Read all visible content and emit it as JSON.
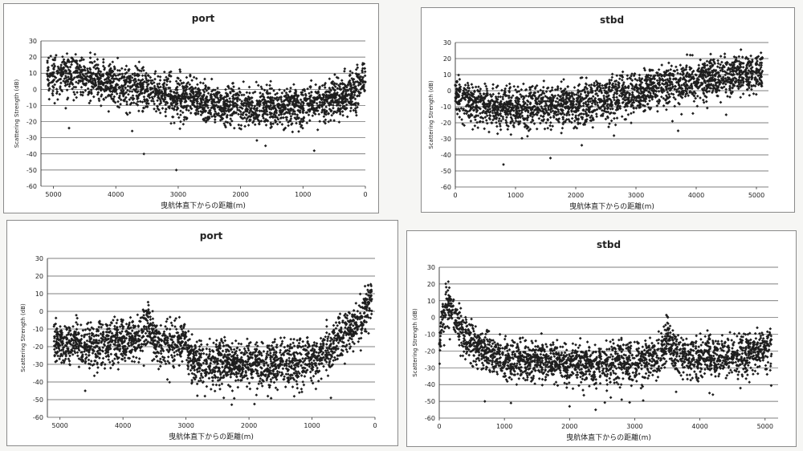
{
  "chart_data": [
    {
      "type": "scatter",
      "title": "port",
      "xlabel": "曳航体直下からの距離(m)",
      "ylabel": "Scattering Strength (dB)",
      "xlim": [
        5200,
        0
      ],
      "x_reversed": true,
      "ylim": [
        -60,
        30
      ],
      "xticks": [
        5000,
        4000,
        3000,
        2000,
        1000,
        0
      ],
      "yticks": [
        30,
        20,
        10,
        0,
        -10,
        -20,
        -30,
        -40,
        -50,
        -60
      ],
      "grid": "horizontal",
      "legend": "none",
      "marker_color": "#1e1e1e",
      "trend": {
        "x": [
          5100,
          4500,
          4000,
          3500,
          3000,
          2500,
          2000,
          1500,
          1000,
          800,
          600,
          300,
          0
        ],
        "y": [
          10,
          8,
          4,
          0,
          -4,
          -8,
          -10,
          -11,
          -10,
          -8,
          -6,
          -3,
          6
        ]
      },
      "spread_db": 6,
      "outliers": [
        {
          "x": 3550,
          "y": -40
        },
        {
          "x": 3030,
          "y": -50
        },
        {
          "x": 4750,
          "y": -24
        },
        {
          "x": 820,
          "y": -38
        },
        {
          "x": 1600,
          "y": -35
        }
      ]
    },
    {
      "type": "scatter",
      "title": "stbd",
      "xlabel": "曳航体直下からの距離(m)",
      "ylabel": "Scattering Strength (dB)",
      "xlim": [
        0,
        5200
      ],
      "x_reversed": false,
      "ylim": [
        -60,
        30
      ],
      "xticks": [
        0,
        1000,
        2000,
        3000,
        4000,
        5000
      ],
      "yticks": [
        30,
        20,
        10,
        0,
        -10,
        -20,
        -30,
        -40,
        -50,
        -60
      ],
      "grid": "horizontal",
      "legend": "none",
      "marker_color": "#1e1e1e",
      "trend": {
        "x": [
          0,
          100,
          500,
          1000,
          1500,
          2000,
          2500,
          3000,
          3500,
          4000,
          4500,
          5000,
          5100
        ],
        "y": [
          0,
          -5,
          -9,
          -11,
          -10,
          -8,
          -5,
          -1,
          3,
          7,
          9,
          11,
          12
        ]
      },
      "spread_db": 6,
      "outliers": [
        {
          "x": 800,
          "y": -46
        },
        {
          "x": 1580,
          "y": -42
        },
        {
          "x": 2100,
          "y": -34
        },
        {
          "x": 3700,
          "y": -25
        }
      ]
    },
    {
      "type": "scatter",
      "title": "port",
      "xlabel": "曳航体直下からの距離(m)",
      "ylabel": "Scattering Strength (dB)",
      "xlim": [
        5200,
        0
      ],
      "x_reversed": true,
      "ylim": [
        -60,
        30
      ],
      "xticks": [
        5000,
        4000,
        3000,
        2000,
        1000,
        0
      ],
      "yticks": [
        30,
        20,
        10,
        0,
        -10,
        -20,
        -30,
        -40,
        -50,
        -60
      ],
      "grid": "horizontal",
      "legend": "none",
      "marker_color": "#1e1e1e",
      "trend": {
        "x": [
          5100,
          4500,
          4000,
          3700,
          3600,
          3500,
          3000,
          2900,
          2500,
          2000,
          1500,
          1000,
          700,
          400,
          200,
          100,
          50
        ],
        "y": [
          -17,
          -19,
          -17,
          -14,
          -5,
          -17,
          -18,
          -29,
          -28,
          -29,
          -30,
          -27,
          -20,
          -10,
          -2,
          6,
          7
        ]
      },
      "spread_db": 6,
      "outliers": [
        {
          "x": 4600,
          "y": -45
        },
        {
          "x": 2700,
          "y": -48
        },
        {
          "x": 2400,
          "y": -49
        },
        {
          "x": 1700,
          "y": -48
        },
        {
          "x": 1200,
          "y": -46
        },
        {
          "x": 700,
          "y": -49
        }
      ]
    },
    {
      "type": "scatter",
      "title": "stbd",
      "xlabel": "曳航体直下からの距離(m)",
      "ylabel": "Scattering Strength (dB)",
      "xlim": [
        0,
        5200
      ],
      "x_reversed": false,
      "ylim": [
        -60,
        30
      ],
      "xticks": [
        0,
        1000,
        2000,
        3000,
        4000,
        5000
      ],
      "yticks": [
        30,
        20,
        10,
        0,
        -10,
        -20,
        -30,
        -40,
        -50,
        -60
      ],
      "grid": "horizontal",
      "legend": "none",
      "marker_color": "#1e1e1e",
      "trend": {
        "x": [
          0,
          50,
          100,
          200,
          400,
          700,
          1000,
          1500,
          2000,
          2500,
          3000,
          3400,
          3500,
          3600,
          4000,
          4500,
          5000,
          5100
        ],
        "y": [
          -15,
          0,
          9,
          3,
          -12,
          -20,
          -24,
          -26,
          -27,
          -27,
          -26,
          -24,
          -10,
          -22,
          -24,
          -23,
          -19,
          -18
        ]
      },
      "spread_db": 6,
      "outliers": [
        {
          "x": 700,
          "y": -50
        },
        {
          "x": 1100,
          "y": -51
        },
        {
          "x": 2000,
          "y": -53
        },
        {
          "x": 2400,
          "y": -55
        },
        {
          "x": 2800,
          "y": -49
        },
        {
          "x": 4200,
          "y": -46
        }
      ]
    }
  ]
}
